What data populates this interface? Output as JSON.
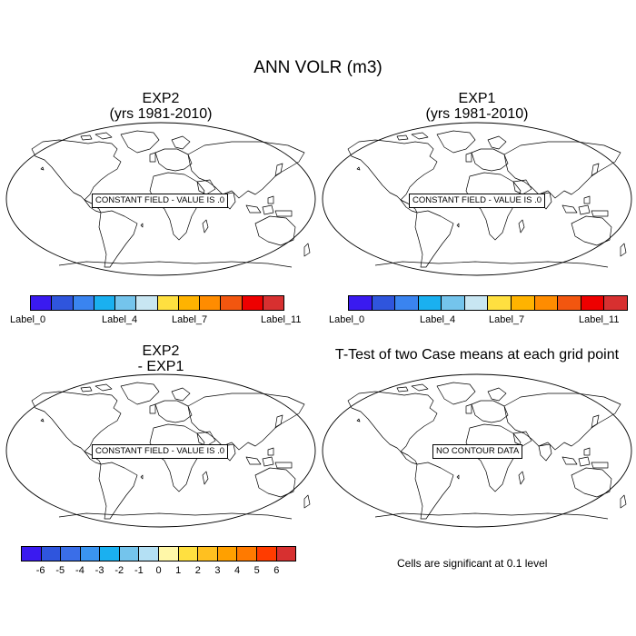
{
  "main_title": "ANN VOLR (m3)",
  "panels": [
    {
      "title_line1": "EXP2",
      "title_line2": "(yrs 1981-2010)",
      "box_text": "CONSTANT FIELD - VALUE IS .0"
    },
    {
      "title_line1": "EXP1",
      "title_line2": "(yrs 1981-2010)",
      "box_text": "CONSTANT FIELD - VALUE IS .0"
    },
    {
      "title_line1": "EXP2",
      "title_line2": "- EXP1",
      "box_text": "CONSTANT FIELD - VALUE IS .0"
    },
    {
      "title_line1": "T-Test of two Case means at each grid point",
      "title_line2": "",
      "box_text": "NO CONTOUR DATA"
    }
  ],
  "colorbar_top": {
    "colors": [
      "#3a1af0",
      "#2f55dd",
      "#3a84f0",
      "#1ab0f0",
      "#74c4ec",
      "#c8e6f2",
      "#ffe040",
      "#ffb300",
      "#ff8c00",
      "#f2560f",
      "#ee0000",
      "#d73030"
    ],
    "labels": [
      "Label_0",
      "Label_4",
      "Label_7",
      "Label_11"
    ]
  },
  "colorbar_bottom": {
    "colors": [
      "#3a1af0",
      "#2f55dd",
      "#3a6ee8",
      "#3a94f0",
      "#1ab0f0",
      "#74c4ec",
      "#b4e0f4",
      "#fff7a8",
      "#ffe040",
      "#ffc020",
      "#ffa000",
      "#ff7a00",
      "#ff3c00",
      "#d73030"
    ],
    "labels": [
      "-6",
      "-5",
      "-4",
      "-3",
      "-2",
      "-1",
      "0",
      "1",
      "2",
      "3",
      "4",
      "5",
      "6"
    ]
  },
  "significance_note": "Cells are significant at 0.1 level"
}
